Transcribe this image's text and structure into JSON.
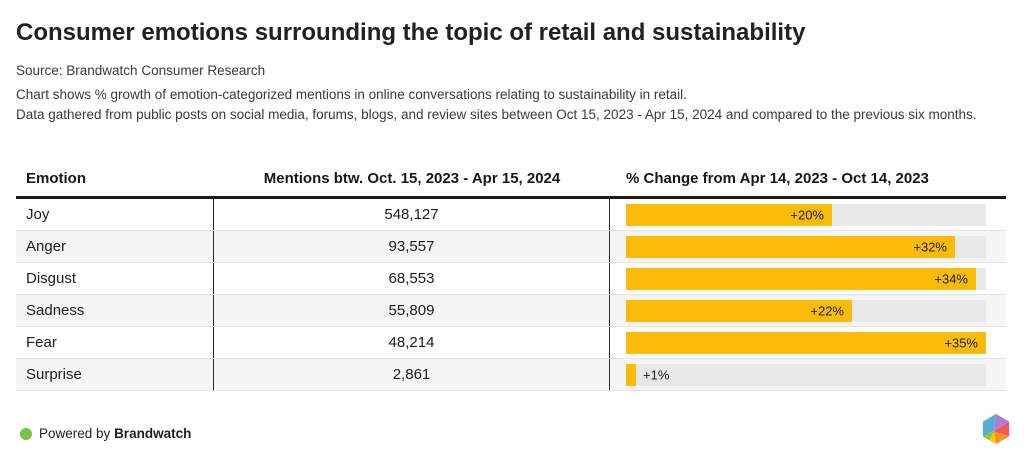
{
  "page": {
    "title": "Consumer emotions surrounding the topic of retail and sustainability",
    "source": "Source: Brandwatch Consumer Research",
    "description_line1": "Chart shows % growth of emotion-categorized mentions in online conversations relating to sustainability in retail.",
    "description_line2": "Data gathered from public posts on social media, forums, blogs, and review sites between Oct 15, 2023 - Apr 15, 2024 and compared to the previous six months."
  },
  "table": {
    "columns": {
      "emotion": "Emotion",
      "mentions": "Mentions btw. Oct. 15, 2023 - Apr 15, 2024",
      "change": "% Change from Apr 14, 2023 - Oct 14, 2023"
    }
  },
  "chart_data": {
    "type": "bar",
    "title": "% Change from Apr 14, 2023 - Oct 14, 2023",
    "categories": [
      "Joy",
      "Anger",
      "Disgust",
      "Sadness",
      "Fear",
      "Surprise"
    ],
    "mentions": [
      "548,127",
      "93,557",
      "68,553",
      "55,809",
      "48,214",
      "2,861"
    ],
    "values": [
      20,
      32,
      34,
      22,
      35,
      1
    ],
    "value_labels": [
      "+20%",
      "+32%",
      "+34%",
      "+22%",
      "+35%",
      "+1%"
    ],
    "xlim": [
      0,
      35
    ],
    "grid": false,
    "bar_color": "#FBBC09",
    "track_color": "#E8E8E8"
  },
  "footer": {
    "powered_by": "Powered by",
    "brand": "Brandwatch",
    "dot_color": "#7CC142"
  },
  "logo": {
    "label": "brandwatch-logo",
    "segment_colors": [
      "#56ADD9",
      "#AF7FD0",
      "#F2575C",
      "#F6921E",
      "#FFC20E",
      "#8CC63F"
    ]
  }
}
